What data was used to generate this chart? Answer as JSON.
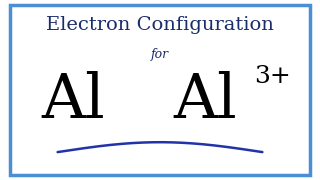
{
  "title": "Electron Configuration",
  "subtitle": "for",
  "symbol_left": "Al",
  "symbol_right": "Al",
  "superscript": "3+",
  "bg_color": "#ffffff",
  "border_color": "#4a8fd4",
  "title_color": "#1a2d6b",
  "symbol_color": "#000000",
  "superscript_color": "#000000",
  "subtitle_color": "#1a2d6b",
  "wave_color": "#2233aa",
  "border_linewidth": 2.5,
  "title_fontsize": 14,
  "subtitle_fontsize": 9,
  "symbol_fontsize": 44,
  "superscript_fontsize": 18
}
